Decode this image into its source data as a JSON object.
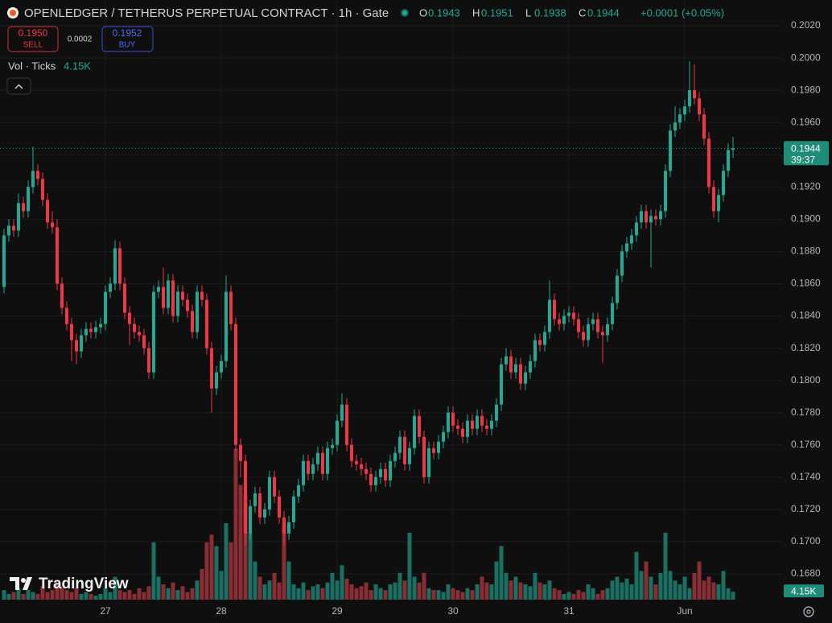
{
  "chart_data": {
    "type": "candlestick",
    "title": "OPENLEDGER / TETHERUS PERPETUAL CONTRACT · 1h · Gate",
    "ohlc_legend": [
      {
        "label": "O",
        "value": "0.1943"
      },
      {
        "label": "H",
        "value": "0.1951"
      },
      {
        "label": "L",
        "value": "0.1938"
      },
      {
        "label": "C",
        "value": "0.1944"
      }
    ],
    "change": "+0.0001 (+0.05%)",
    "trade": {
      "sell_price": "0.1950",
      "sell": "SELL",
      "spread": "0.0002",
      "buy_price": "0.1952",
      "buy": "BUY"
    },
    "volume_legend": "Vol · Ticks",
    "volume_label": "4.15K",
    "countdown": "39:37",
    "brand": "TradingView",
    "up_color": "#22ab94",
    "down_color": "#f23645",
    "up_volume_color": "#1b6f63",
    "down_volume_color": "#8a2e36",
    "grid": true,
    "ylim": [
      0.1664,
      0.2036
    ],
    "yticks": [
      {
        "value": 0.202,
        "label": "0.2020"
      },
      {
        "value": 0.2,
        "label": "0.2000"
      },
      {
        "value": 0.198,
        "label": "0.1980"
      },
      {
        "value": 0.196,
        "label": "0.1960"
      },
      {
        "value": 0.194,
        "label": "0.1940"
      },
      {
        "value": 0.192,
        "label": "0.1920"
      },
      {
        "value": 0.19,
        "label": "0.1900"
      },
      {
        "value": 0.188,
        "label": "0.1880"
      },
      {
        "value": 0.186,
        "label": "0.1860"
      },
      {
        "value": 0.184,
        "label": "0.1840"
      },
      {
        "value": 0.182,
        "label": "0.1820"
      },
      {
        "value": 0.18,
        "label": "0.1800"
      },
      {
        "value": 0.178,
        "label": "0.1780"
      },
      {
        "value": 0.176,
        "label": "0.1760"
      },
      {
        "value": 0.174,
        "label": "0.1740"
      },
      {
        "value": 0.172,
        "label": "0.1720"
      },
      {
        "value": 0.17,
        "label": "0.1700"
      },
      {
        "value": 0.168,
        "label": "0.1680"
      }
    ],
    "vlim": [
      0,
      80000
    ],
    "categories": [
      null,
      null,
      null,
      null,
      null,
      null,
      null,
      null,
      null,
      null,
      null,
      null,
      null,
      null,
      null,
      null,
      null,
      null,
      null,
      null,
      null,
      "27",
      null,
      null,
      null,
      null,
      null,
      null,
      null,
      null,
      null,
      null,
      null,
      null,
      null,
      null,
      null,
      null,
      null,
      null,
      null,
      null,
      null,
      null,
      null,
      "28",
      null,
      null,
      null,
      null,
      null,
      null,
      null,
      null,
      null,
      null,
      null,
      null,
      null,
      null,
      null,
      null,
      null,
      null,
      null,
      null,
      null,
      null,
      null,
      "29",
      null,
      null,
      null,
      null,
      null,
      null,
      null,
      null,
      null,
      null,
      null,
      null,
      null,
      null,
      null,
      null,
      null,
      null,
      null,
      null,
      null,
      null,
      null,
      "30",
      null,
      null,
      null,
      null,
      null,
      null,
      null,
      null,
      null,
      null,
      null,
      null,
      null,
      null,
      null,
      null,
      null,
      null,
      null,
      null,
      null,
      null,
      null,
      "31",
      null,
      null,
      null,
      null,
      null,
      null,
      null,
      null,
      null,
      null,
      null,
      null,
      null,
      null,
      null,
      null,
      null,
      null,
      null,
      null,
      null,
      null,
      null,
      "Jun",
      null,
      null,
      null,
      null,
      null,
      null,
      null,
      null,
      null,
      null
    ],
    "open": [
      0.1858,
      0.189,
      0.1896,
      0.1893,
      0.191,
      0.1905,
      0.192,
      0.193,
      0.1925,
      0.1912,
      0.1898,
      0.1895,
      0.186,
      0.1845,
      0.1835,
      0.1825,
      0.1818,
      0.1828,
      0.1832,
      0.183,
      0.1833,
      0.1835,
      0.1855,
      0.186,
      0.1882,
      0.186,
      0.1842,
      0.1835,
      0.183,
      0.1828,
      0.182,
      0.1805,
      0.1855,
      0.1858,
      0.1845,
      0.1862,
      0.184,
      0.1855,
      0.185,
      0.1843,
      0.183,
      0.1855,
      0.185,
      0.182,
      0.1795,
      0.1805,
      0.1812,
      0.1855,
      0.1835,
      0.176,
      0.175,
      0.1705,
      0.1722,
      0.173,
      0.1715,
      0.172,
      0.174,
      0.1728,
      0.1715,
      0.1705,
      0.1712,
      0.1728,
      0.1735,
      0.175,
      0.1742,
      0.1748,
      0.1755,
      0.1742,
      0.1758,
      0.176,
      0.1775,
      0.1785,
      0.176,
      0.175,
      0.1748,
      0.1745,
      0.1742,
      0.1735,
      0.174,
      0.1745,
      0.1738,
      0.175,
      0.1755,
      0.1765,
      0.1748,
      0.1758,
      0.1778,
      0.1765,
      0.174,
      0.1758,
      0.1755,
      0.1762,
      0.1768,
      0.178,
      0.1772,
      0.177,
      0.1765,
      0.1775,
      0.177,
      0.1778,
      0.1772,
      0.177,
      0.1775,
      0.1785,
      0.181,
      0.1815,
      0.1805,
      0.181,
      0.1798,
      0.1805,
      0.1812,
      0.1825,
      0.1822,
      0.183,
      0.185,
      0.1838,
      0.1835,
      0.184,
      0.1842,
      0.1838,
      0.183,
      0.1825,
      0.1835,
      0.1838,
      0.183,
      0.1828,
      0.1835,
      0.1848,
      0.1865,
      0.188,
      0.1885,
      0.189,
      0.1898,
      0.1905,
      0.1898,
      0.1902,
      0.19,
      0.1905,
      0.193,
      0.1955,
      0.196,
      0.1965,
      0.197,
      0.198,
      0.1975,
      0.1965,
      0.195,
      0.192,
      0.1905,
      0.1915,
      0.193,
      0.1943
    ],
    "high": [
      0.1894,
      0.19,
      0.19,
      0.1916,
      0.1914,
      0.1924,
      0.1945,
      0.1934,
      0.1929,
      0.1916,
      0.1905,
      0.19,
      0.1864,
      0.1849,
      0.1839,
      0.1829,
      0.1832,
      0.1836,
      0.1836,
      0.1837,
      0.1839,
      0.1859,
      0.1864,
      0.1887,
      0.1886,
      0.1864,
      0.1846,
      0.1839,
      0.1834,
      0.1832,
      0.1824,
      0.1859,
      0.1862,
      0.187,
      0.1866,
      0.1866,
      0.1859,
      0.1859,
      0.1854,
      0.1847,
      0.1859,
      0.1859,
      0.1854,
      0.1824,
      0.1809,
      0.1816,
      0.1865,
      0.1859,
      0.1839,
      0.1764,
      0.1754,
      0.1726,
      0.1734,
      0.1734,
      0.1724,
      0.1744,
      0.1744,
      0.1732,
      0.1719,
      0.1716,
      0.1732,
      0.1739,
      0.1754,
      0.1754,
      0.1752,
      0.1759,
      0.1759,
      0.1762,
      0.1764,
      0.1779,
      0.1792,
      0.1789,
      0.1764,
      0.1754,
      0.1752,
      0.1749,
      0.1746,
      0.1744,
      0.1749,
      0.1749,
      0.1754,
      0.1759,
      0.1769,
      0.1769,
      0.1762,
      0.1782,
      0.1782,
      0.1769,
      0.1762,
      0.1762,
      0.1766,
      0.1772,
      0.1784,
      0.1784,
      0.1776,
      0.1774,
      0.1779,
      0.1779,
      0.1782,
      0.1782,
      0.1776,
      0.1779,
      0.1789,
      0.1814,
      0.182,
      0.1819,
      0.1814,
      0.1814,
      0.1809,
      0.1816,
      0.1829,
      0.1829,
      0.1834,
      0.1862,
      0.1854,
      0.1842,
      0.1844,
      0.1846,
      0.1846,
      0.1842,
      0.1834,
      0.1839,
      0.1842,
      0.1842,
      0.1834,
      0.1839,
      0.1852,
      0.1869,
      0.1884,
      0.1889,
      0.1894,
      0.1902,
      0.1909,
      0.1909,
      0.1906,
      0.1906,
      0.1909,
      0.1934,
      0.1959,
      0.197,
      0.1969,
      0.1974,
      0.1998,
      0.1996,
      0.1979,
      0.1969,
      0.1954,
      0.1924,
      0.1919,
      0.1934,
      0.1947,
      0.1951
    ],
    "low": [
      0.1854,
      0.1886,
      0.1889,
      0.1889,
      0.1901,
      0.1901,
      0.1916,
      0.1921,
      0.1908,
      0.1894,
      0.1891,
      0.1856,
      0.1841,
      0.1831,
      0.1812,
      0.181,
      0.1814,
      0.1824,
      0.1826,
      0.1826,
      0.1829,
      0.1831,
      0.1851,
      0.1856,
      0.1856,
      0.1838,
      0.1822,
      0.1826,
      0.1824,
      0.1816,
      0.1801,
      0.1801,
      0.1851,
      0.1841,
      0.1841,
      0.1836,
      0.1836,
      0.1846,
      0.1839,
      0.1826,
      0.1826,
      0.1846,
      0.1816,
      0.178,
      0.1791,
      0.1801,
      0.1808,
      0.1831,
      0.1756,
      0.174,
      0.1698,
      0.1701,
      0.1718,
      0.1711,
      0.1711,
      0.1716,
      0.1724,
      0.1711,
      0.1698,
      0.1701,
      0.1708,
      0.1724,
      0.1731,
      0.1738,
      0.1738,
      0.1744,
      0.1738,
      0.1738,
      0.1754,
      0.1756,
      0.1771,
      0.1756,
      0.1746,
      0.1744,
      0.1741,
      0.1738,
      0.1731,
      0.1731,
      0.1736,
      0.1734,
      0.1734,
      0.1746,
      0.1751,
      0.1744,
      0.1744,
      0.1754,
      0.1761,
      0.1736,
      0.1736,
      0.1751,
      0.1751,
      0.1758,
      0.1764,
      0.1768,
      0.1766,
      0.1761,
      0.1761,
      0.1766,
      0.1766,
      0.1768,
      0.1766,
      0.1766,
      0.1771,
      0.1781,
      0.1806,
      0.1801,
      0.1801,
      0.1794,
      0.1794,
      0.1801,
      0.1808,
      0.1818,
      0.1818,
      0.1826,
      0.1834,
      0.1831,
      0.1831,
      0.1836,
      0.1834,
      0.1826,
      0.1821,
      0.1821,
      0.1831,
      0.1826,
      0.1811,
      0.1824,
      0.1831,
      0.1844,
      0.1861,
      0.1876,
      0.1881,
      0.1886,
      0.1894,
      0.1894,
      0.187,
      0.1896,
      0.1896,
      0.1901,
      0.1926,
      0.1951,
      0.1956,
      0.1961,
      0.1966,
      0.1971,
      0.1961,
      0.1946,
      0.1916,
      0.1901,
      0.1898,
      0.1911,
      0.1926,
      0.1938
    ],
    "close": [
      0.189,
      0.1896,
      0.1893,
      0.191,
      0.1905,
      0.192,
      0.193,
      0.1925,
      0.1912,
      0.1898,
      0.1895,
      0.186,
      0.1845,
      0.1835,
      0.1825,
      0.1818,
      0.1828,
      0.1832,
      0.183,
      0.1833,
      0.1835,
      0.1855,
      0.186,
      0.1882,
      0.186,
      0.1842,
      0.1835,
      0.183,
      0.1828,
      0.182,
      0.1805,
      0.1855,
      0.1858,
      0.1845,
      0.1862,
      0.184,
      0.1855,
      0.185,
      0.1843,
      0.183,
      0.1855,
      0.185,
      0.182,
      0.1795,
      0.1805,
      0.1812,
      0.1855,
      0.1835,
      0.176,
      0.175,
      0.1705,
      0.1722,
      0.173,
      0.1715,
      0.172,
      0.174,
      0.1728,
      0.1715,
      0.1705,
      0.1712,
      0.1728,
      0.1735,
      0.175,
      0.1742,
      0.1748,
      0.1755,
      0.1742,
      0.1758,
      0.176,
      0.1775,
      0.1785,
      0.176,
      0.175,
      0.1748,
      0.1745,
      0.1742,
      0.1735,
      0.174,
      0.1745,
      0.1738,
      0.175,
      0.1755,
      0.1765,
      0.1748,
      0.1758,
      0.1778,
      0.1765,
      0.174,
      0.1758,
      0.1755,
      0.1762,
      0.1768,
      0.178,
      0.1772,
      0.177,
      0.1765,
      0.1775,
      0.177,
      0.1778,
      0.1772,
      0.177,
      0.1775,
      0.1785,
      0.181,
      0.1815,
      0.1805,
      0.181,
      0.1798,
      0.1805,
      0.1812,
      0.1825,
      0.1822,
      0.183,
      0.185,
      0.1838,
      0.1835,
      0.184,
      0.1842,
      0.1838,
      0.183,
      0.1825,
      0.1835,
      0.1838,
      0.183,
      0.1828,
      0.1835,
      0.1848,
      0.1865,
      0.188,
      0.1885,
      0.189,
      0.1898,
      0.1905,
      0.1898,
      0.1902,
      0.19,
      0.1905,
      0.193,
      0.1955,
      0.196,
      0.1965,
      0.197,
      0.198,
      0.1975,
      0.1965,
      0.195,
      0.192,
      0.1905,
      0.1915,
      0.193,
      0.1943,
      0.1944
    ],
    "volume": [
      5000,
      3000,
      4000,
      6000,
      3000,
      5000,
      4000,
      3000,
      7000,
      4000,
      5000,
      9000,
      6000,
      5000,
      4000,
      6000,
      3000,
      4000,
      3000,
      2000,
      3000,
      6000,
      4000,
      12000,
      5000,
      4000,
      5000,
      3000,
      6000,
      4000,
      7000,
      30000,
      12000,
      8000,
      6000,
      9000,
      5000,
      7000,
      4000,
      6000,
      10000,
      16000,
      30000,
      34000,
      28000,
      15000,
      40000,
      30000,
      79000,
      60000,
      55000,
      35000,
      20000,
      12000,
      8000,
      10000,
      14000,
      9000,
      40000,
      20000,
      8000,
      6000,
      9000,
      5000,
      7000,
      8000,
      6000,
      9000,
      14000,
      10000,
      18000,
      11000,
      8000,
      6000,
      7000,
      9000,
      5000,
      8000,
      6000,
      5000,
      8000,
      9000,
      14000,
      10000,
      35000,
      12000,
      9000,
      14000,
      6000,
      5000,
      5000,
      4000,
      8000,
      6000,
      5000,
      4000,
      6000,
      5000,
      8000,
      12000,
      9000,
      8000,
      20000,
      28000,
      14000,
      10000,
      12000,
      9000,
      8000,
      7000,
      14000,
      9000,
      8000,
      10000,
      6000,
      5000,
      3000,
      4000,
      3000,
      5000,
      4000,
      8000,
      6000,
      3000,
      5000,
      6000,
      10000,
      12000,
      9000,
      11000,
      8000,
      25000,
      15000,
      20000,
      12000,
      8000,
      14000,
      35000,
      15000,
      10000,
      8000,
      12000,
      6000,
      14000,
      20000,
      10000,
      12000,
      9000,
      8000,
      15000,
      6000,
      4150
    ]
  }
}
